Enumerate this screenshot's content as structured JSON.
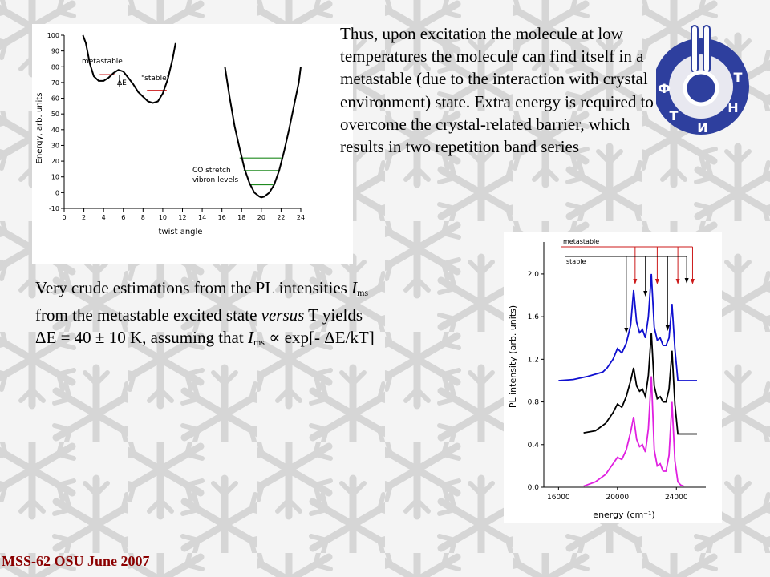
{
  "slide": {
    "intro_text": "Thus, upon excitation the molecule at low temperatures the molecule can find itself in a metastable (due to the interaction with crystal environment) state. Extra energy is required to overcome the crystal-related barrier, which results in two repetition band series",
    "estimate": {
      "line1_pre": "Very crude estimations from the PL intensities ",
      "I": "I",
      "ms": "ms",
      "line2_pre": "from the metastable excited state ",
      "versus": "versus",
      "line2_post": " T yields",
      "line3_pre": "ΔE = 40 ± 10 K, assuming that ",
      "line3_post": " ∝ exp[- ΔE/kT]"
    },
    "footer": "MSS-62 OSU June 2007",
    "logo_letters": [
      "Ф",
      "Т",
      "И",
      "Н",
      "Т"
    ]
  },
  "colors": {
    "blue_trace": "#1010d0",
    "black_trace": "#000000",
    "magenta_trace": "#e020e0",
    "marker_red": "#cc1a1a",
    "vibron_green": "#1f8a1f",
    "footer": "#8b0000",
    "logo_ring": "#2e3f9e"
  },
  "chart_data": [
    {
      "type": "line",
      "xlabel": "twist angle",
      "ylabel": "Energy, arb. units",
      "xlim": [
        0,
        24
      ],
      "ylim": [
        -10,
        100
      ],
      "xticks": [
        0,
        2,
        4,
        6,
        8,
        10,
        12,
        14,
        16,
        18,
        20,
        22,
        24
      ],
      "yticks": [
        -10,
        0,
        10,
        20,
        30,
        40,
        50,
        60,
        70,
        80,
        90,
        100
      ],
      "annotations": [
        "metastable",
        "ΔE",
        "\"stable\"",
        "CO stretch",
        "vibron levels"
      ],
      "series": [
        {
          "x": [
            1.9,
            2.2,
            2.6,
            3.0,
            3.5,
            4.0,
            4.5,
            5.0,
            5.5,
            6.0,
            6.5,
            7.0,
            7.5,
            8.0,
            8.5,
            9.0,
            9.5,
            10.0,
            10.5,
            11.0,
            11.3
          ],
          "y": [
            105,
            95,
            82,
            74,
            71,
            71,
            73,
            76,
            78,
            77,
            73,
            69,
            64,
            61,
            58,
            57,
            58,
            63,
            72,
            85,
            95
          ]
        },
        {
          "x": [
            16.3,
            16.8,
            17.3,
            17.8,
            18.3,
            18.8,
            19.3,
            19.8,
            20.0,
            20.3,
            20.8,
            21.3,
            21.8,
            22.3,
            22.8,
            23.3,
            23.8,
            24.0
          ],
          "y": [
            80,
            60,
            42,
            28,
            15,
            6,
            0,
            -2.5,
            -3,
            -2.5,
            0,
            5,
            14,
            26,
            40,
            55,
            70,
            80
          ]
        }
      ],
      "level_lines": [
        {
          "y": 75,
          "x": [
            3.6,
            5.2
          ]
        },
        {
          "y": 65,
          "x": [
            8.4,
            10.4
          ]
        },
        {
          "y": 22,
          "x": [
            17.8,
            22.2
          ]
        },
        {
          "y": 14,
          "x": [
            18.2,
            21.8
          ]
        },
        {
          "y": 5,
          "x": [
            18.8,
            21.2
          ]
        }
      ]
    },
    {
      "type": "line",
      "xlabel": "energy (cm⁻¹)",
      "ylabel": "PL intensity (arb. units)",
      "xlim": [
        15000,
        26000
      ],
      "ylim": [
        0,
        2.3
      ],
      "xticks": [
        16000,
        20000,
        24000
      ],
      "yticks": [
        0.0,
        0.4,
        0.8,
        1.2,
        1.6,
        2.0
      ],
      "ytick_labels": [
        "0.0",
        "0.4",
        "0.8",
        "1.2",
        "1.6",
        "2.0"
      ],
      "legend_labels": [
        "metastable",
        "stable"
      ],
      "stable_arrows_x": [
        20600,
        21900,
        23400,
        24700
      ],
      "metastable_arrows_x": [
        21200,
        22700,
        24100,
        25100
      ],
      "series": [
        {
          "name": "blue",
          "x": [
            16000,
            17000,
            18000,
            19000,
            19300,
            19700,
            20000,
            20300,
            20600,
            20900,
            21100,
            21300,
            21500,
            21700,
            21900,
            22100,
            22300,
            22500,
            22700,
            22900,
            23100,
            23300,
            23500,
            23700,
            23900,
            24100,
            24300,
            24500,
            24700,
            24900,
            25100,
            25400
          ],
          "y": [
            1.0,
            1.01,
            1.04,
            1.08,
            1.12,
            1.2,
            1.3,
            1.26,
            1.35,
            1.52,
            1.85,
            1.55,
            1.45,
            1.48,
            1.4,
            1.6,
            2.0,
            1.5,
            1.38,
            1.4,
            1.33,
            1.33,
            1.4,
            1.72,
            1.3,
            1.0,
            1.0,
            1.0,
            1.0,
            1.0,
            1.0,
            1.0
          ]
        },
        {
          "name": "black",
          "x": [
            17700,
            18500,
            19200,
            19700,
            20000,
            20300,
            20600,
            20900,
            21100,
            21300,
            21500,
            21700,
            21900,
            22100,
            22300,
            22500,
            22700,
            22900,
            23100,
            23300,
            23500,
            23700,
            23900,
            24100,
            24300,
            24500,
            24700,
            24900,
            25100,
            25400
          ],
          "y": [
            0.51,
            0.53,
            0.6,
            0.7,
            0.78,
            0.75,
            0.85,
            1.0,
            1.12,
            0.95,
            0.9,
            0.92,
            0.85,
            1.05,
            1.45,
            0.95,
            0.83,
            0.85,
            0.8,
            0.8,
            0.92,
            1.28,
            0.78,
            0.5,
            0.5,
            0.5,
            0.5,
            0.5,
            0.5,
            0.5
          ]
        },
        {
          "name": "magenta",
          "x": [
            17700,
            18500,
            19200,
            19700,
            20000,
            20300,
            20600,
            20900,
            21100,
            21300,
            21500,
            21700,
            21900,
            22100,
            22300,
            22500,
            22700,
            22900,
            23100,
            23300,
            23500,
            23700,
            23900,
            24100,
            24300,
            24500
          ],
          "y": [
            0.01,
            0.05,
            0.12,
            0.22,
            0.28,
            0.26,
            0.35,
            0.52,
            0.66,
            0.45,
            0.38,
            0.4,
            0.33,
            0.55,
            1.04,
            0.35,
            0.2,
            0.22,
            0.15,
            0.15,
            0.3,
            0.8,
            0.25,
            0.05,
            0.02,
            0.01
          ]
        }
      ]
    }
  ]
}
